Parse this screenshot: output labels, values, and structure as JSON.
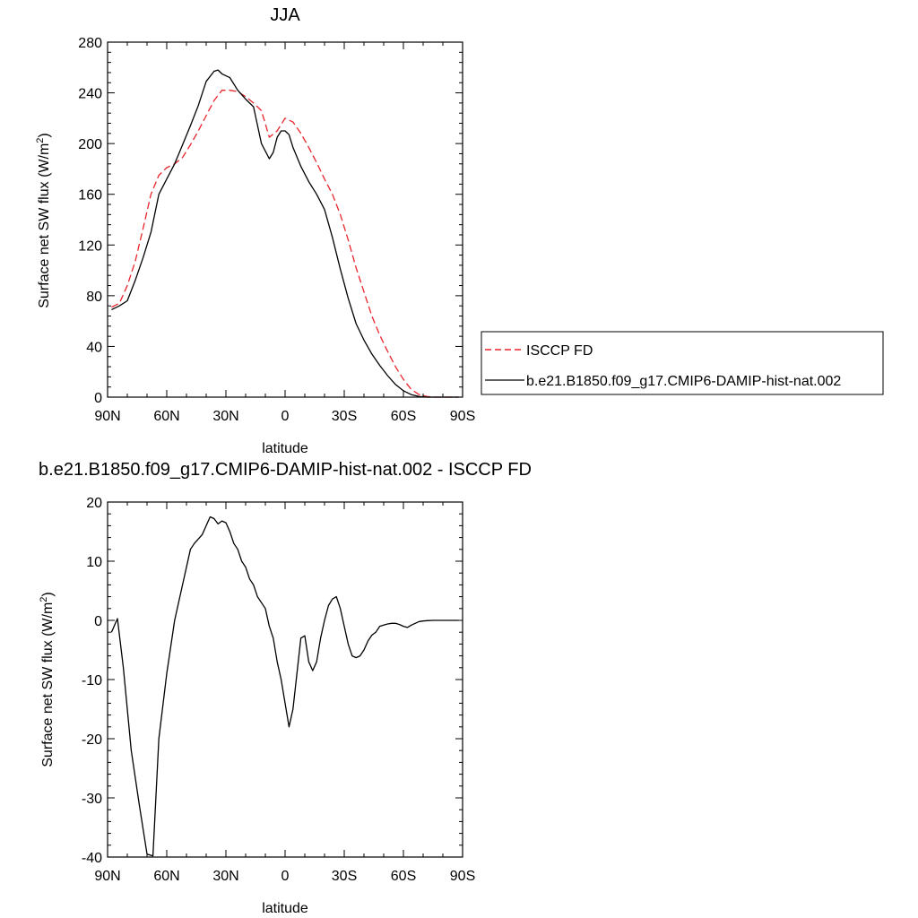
{
  "chart_data": [
    {
      "type": "line",
      "title": "JJA",
      "xlabel": "latitude",
      "ylabel_main": "Surface net SW flux (W/m",
      "ylabel_sup": "2",
      "ylabel_close": ")",
      "xlim": [
        90,
        -90
      ],
      "ylim": [
        0,
        280
      ],
      "x_ticks": [
        {
          "value": 90,
          "label": "90N"
        },
        {
          "value": 60,
          "label": "60N"
        },
        {
          "value": 30,
          "label": "30N"
        },
        {
          "value": 0,
          "label": "0"
        },
        {
          "value": -30,
          "label": "30S"
        },
        {
          "value": -60,
          "label": "60S"
        },
        {
          "value": -90,
          "label": "90S"
        }
      ],
      "y_ticks": [
        0,
        40,
        80,
        120,
        160,
        200,
        240,
        280
      ],
      "grid": false,
      "legend_position": "right",
      "series": [
        {
          "name": "ISCCP FD",
          "color": "#e8242b",
          "dash": "dashed",
          "x": [
            88,
            84,
            80,
            76,
            72,
            68,
            64,
            60,
            56,
            52,
            48,
            44,
            40,
            36,
            32,
            28,
            24,
            20,
            16,
            12,
            8,
            4,
            0,
            -4,
            -8,
            -12,
            -16,
            -20,
            -24,
            -28,
            -32,
            -36,
            -40,
            -44,
            -48,
            -52,
            -56,
            -60,
            -64,
            -68,
            -72,
            -76,
            -80,
            -84,
            -88
          ],
          "values": [
            71,
            74,
            88,
            107,
            133,
            160,
            175,
            181,
            184,
            189,
            199,
            210,
            222,
            234,
            242,
            242,
            241,
            237,
            232,
            226,
            205,
            210,
            220,
            217,
            208,
            197,
            185,
            172,
            160,
            144,
            124,
            102,
            83,
            64,
            49,
            36,
            24,
            14,
            6,
            2,
            0.5,
            0,
            0,
            0,
            0
          ]
        },
        {
          "name": "b.e21.B1850.f09_g17.CMIP6-DAMIP-hist-nat.002",
          "color": "#000000",
          "dash": "solid",
          "x": [
            88,
            84,
            80,
            76,
            72,
            68,
            64,
            60,
            56,
            52,
            48,
            44,
            40,
            36,
            34,
            32,
            28,
            24,
            20,
            16,
            12,
            8,
            6,
            4,
            2,
            0,
            -2,
            -4,
            -8,
            -12,
            -16,
            -20,
            -24,
            -28,
            -32,
            -36,
            -40,
            -44,
            -48,
            -52,
            -56,
            -60,
            -64,
            -68,
            -72,
            -76,
            -80,
            -84,
            -88
          ],
          "values": [
            69,
            72,
            76,
            92,
            110,
            130,
            160,
            172,
            184,
            199,
            214,
            230,
            249,
            257,
            258,
            255,
            252,
            242,
            235,
            229,
            200,
            188,
            193,
            205,
            210,
            210,
            207,
            197,
            182,
            170,
            160,
            148,
            126,
            101,
            78,
            58,
            45,
            34,
            25,
            17,
            10,
            5,
            2,
            0.5,
            0,
            0,
            0,
            0,
            0
          ]
        }
      ]
    },
    {
      "type": "line",
      "title": "b.e21.B1850.f09_g17.CMIP6-DAMIP-hist-nat.002 - ISCCP FD",
      "xlabel": "latitude",
      "ylabel_main": "Surface net SW flux (W/m",
      "ylabel_sup": "2",
      "ylabel_close": ")",
      "xlim": [
        90,
        -90
      ],
      "ylim": [
        -40,
        20
      ],
      "x_ticks": [
        {
          "value": 90,
          "label": "90N"
        },
        {
          "value": 60,
          "label": "60N"
        },
        {
          "value": 30,
          "label": "30N"
        },
        {
          "value": 0,
          "label": "0"
        },
        {
          "value": -30,
          "label": "30S"
        },
        {
          "value": -60,
          "label": "60S"
        },
        {
          "value": -90,
          "label": "90S"
        }
      ],
      "y_ticks": [
        -40,
        -30,
        -20,
        -10,
        0,
        10,
        20
      ],
      "grid": false,
      "series": [
        {
          "name": "",
          "color": "#000000",
          "dash": "solid",
          "x": [
            88,
            85,
            82,
            78,
            74,
            70,
            67,
            64,
            60,
            56,
            52,
            48,
            46,
            42,
            40,
            38,
            36,
            34,
            32,
            30,
            28,
            26,
            24,
            22,
            20,
            18,
            16,
            14,
            12,
            10,
            8,
            6,
            4,
            2,
            0,
            -2,
            -4,
            -6,
            -8,
            -10,
            -12,
            -14,
            -16,
            -18,
            -20,
            -22,
            -24,
            -26,
            -28,
            -30,
            -32,
            -34,
            -36,
            -38,
            -40,
            -42,
            -44,
            -46,
            -48,
            -50,
            -52,
            -54,
            -56,
            -58,
            -60,
            -62,
            -64,
            -66,
            -68,
            -70,
            -72,
            -75,
            -80,
            -85,
            -88
          ],
          "values": [
            -2,
            0.3,
            -8,
            -22,
            -31,
            -39.5,
            -39.8,
            -20,
            -9,
            0,
            6,
            12,
            13,
            14.5,
            16,
            17.5,
            17.2,
            16.3,
            16.8,
            16.5,
            15,
            13,
            12,
            10,
            9,
            7,
            6,
            4,
            3,
            2,
            -1,
            -3,
            -7,
            -10,
            -14,
            -18,
            -15,
            -9,
            -3,
            -2.6,
            -7,
            -8.5,
            -7,
            -3,
            0,
            2.5,
            3.6,
            4,
            2,
            -1,
            -4,
            -6,
            -6.3,
            -6,
            -5,
            -3.5,
            -2.5,
            -2,
            -1,
            -0.8,
            -0.6,
            -0.5,
            -0.5,
            -0.7,
            -1,
            -1.2,
            -0.8,
            -0.5,
            -0.2,
            -0.1,
            -0.05,
            0,
            0,
            0,
            0
          ]
        }
      ]
    }
  ]
}
